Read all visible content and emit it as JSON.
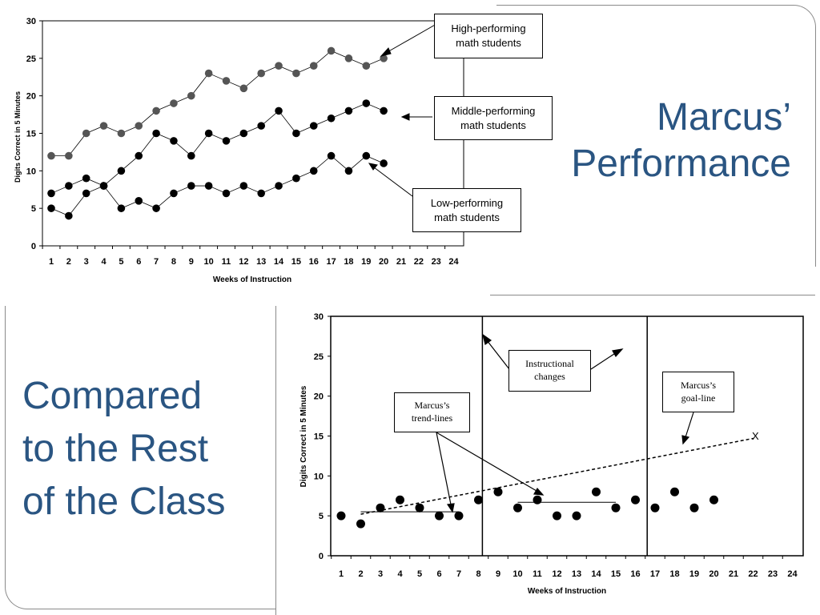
{
  "slide": {
    "title": "Marcus’\nPerformance",
    "subtitle": "Compared\nto the Rest\nof the Class"
  },
  "chart_data": [
    {
      "type": "line",
      "categories": [
        "1",
        "2",
        "3",
        "4",
        "5",
        "6",
        "7",
        "8",
        "9",
        "10",
        "11",
        "12",
        "13",
        "14",
        "15",
        "16",
        "17",
        "18",
        "19",
        "20",
        "21",
        "22",
        "23",
        "24"
      ],
      "x": [
        1,
        2,
        3,
        4,
        5,
        6,
        7,
        8,
        9,
        10,
        11,
        12,
        13,
        14,
        15,
        16,
        17,
        18,
        19,
        20
      ],
      "ylim": [
        0,
        30
      ],
      "yticks": [
        "0",
        "5",
        "10",
        "15",
        "20",
        "25",
        "30"
      ],
      "xlabel": "Weeks of Instruction",
      "ylabel": "Digits Correct in 5 Minutes",
      "grid": false,
      "series": [
        {
          "name": "High-performing math students",
          "color": "#555555",
          "values": [
            12,
            12,
            15,
            16,
            15,
            16,
            18,
            19,
            20,
            23,
            22,
            21,
            23,
            24,
            23,
            24,
            26,
            25,
            24,
            25
          ]
        },
        {
          "name": "Middle-performing math students",
          "color": "#000000",
          "values": [
            7,
            8,
            9,
            8,
            10,
            12,
            15,
            14,
            12,
            15,
            14,
            15,
            16,
            18,
            15,
            16,
            17,
            18,
            19,
            18
          ]
        },
        {
          "name": "Low-performing math students",
          "color": "#000000",
          "values": [
            5,
            4,
            7,
            8,
            5,
            6,
            5,
            7,
            8,
            8,
            7,
            8,
            7,
            8,
            9,
            10,
            12,
            10,
            12,
            11
          ]
        }
      ],
      "annotations": [
        "High-performing\nmath students",
        "Middle-performing\nmath students",
        "Low-performing\nmath students"
      ]
    },
    {
      "type": "scatter",
      "x": [
        1,
        2,
        3,
        4,
        5,
        6,
        7,
        8,
        9,
        10,
        11,
        12,
        13,
        14,
        15,
        16,
        17,
        18,
        19,
        20
      ],
      "ylim": [
        0,
        30
      ],
      "yticks": [
        "0",
        "5",
        "10",
        "15",
        "20",
        "25",
        "30"
      ],
      "xlabel": "Weeks of Instruction",
      "ylabel": "Digits Correct in 5 Minutes",
      "grid": false,
      "series": [
        {
          "name": "Marcus",
          "values": [
            5,
            4,
            6,
            7,
            6,
            5,
            5,
            7,
            8,
            6,
            7,
            5,
            5,
            8,
            6,
            7,
            6,
            8,
            6,
            7
          ]
        }
      ],
      "phase_changes": [
        8.2,
        16.6
      ],
      "trend_lines": [
        {
          "x": [
            2,
            7
          ],
          "y": [
            5.5,
            5.5
          ]
        },
        {
          "x": [
            10,
            15
          ],
          "y": [
            6.7,
            6.7
          ]
        }
      ],
      "goal_line": {
        "x": [
          2,
          22
        ],
        "y": [
          5.2,
          14.7
        ],
        "end_label": "X"
      },
      "annotations": [
        "Instructional\nchanges",
        "Marcus’s\ntrend-lines",
        "Marcus’s\ngoal-line"
      ]
    }
  ]
}
